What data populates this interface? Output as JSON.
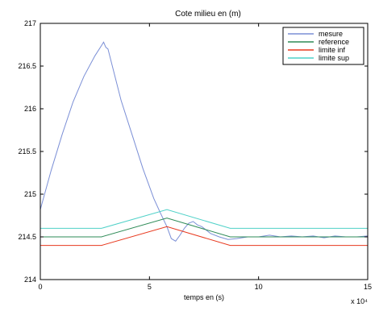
{
  "chart_data": {
    "type": "line",
    "title": "Cote milieu en (m)",
    "xlabel": "temps en (s)",
    "ylabel": "",
    "x_exponent_label": "x 10⁴",
    "xlim": [
      0,
      15
    ],
    "ylim": [
      214,
      217
    ],
    "x_ticks": [
      0,
      5,
      10,
      15
    ],
    "x_tick_labels": [
      "0",
      "5",
      "10",
      "15"
    ],
    "y_ticks": [
      214,
      214.5,
      215,
      215.5,
      216,
      216.5,
      217
    ],
    "y_tick_labels": [
      "214",
      "214.5",
      "215",
      "215.5",
      "216",
      "216.5",
      "217"
    ],
    "grid": false,
    "legend_position": "top-right",
    "series": [
      {
        "name": "mesure",
        "color": "#7b8fd6",
        "x": [
          0,
          0.5,
          1.0,
          1.5,
          2.0,
          2.5,
          2.8,
          2.9,
          3.0,
          3.1,
          3.3,
          3.7,
          4.2,
          4.7,
          5.2,
          5.5,
          5.8,
          6.0,
          6.2,
          6.4,
          6.6,
          6.8,
          7.0,
          7.2,
          7.4,
          7.8,
          8.2,
          8.6,
          9.0,
          9.5,
          10.0,
          10.5,
          11.0,
          11.5,
          12.0,
          12.5,
          13.0,
          13.5,
          14.0,
          14.5,
          15.0
        ],
        "y": [
          214.82,
          215.28,
          215.7,
          216.08,
          216.38,
          216.62,
          216.74,
          216.78,
          216.72,
          216.7,
          216.5,
          216.1,
          215.7,
          215.3,
          214.95,
          214.78,
          214.62,
          214.48,
          214.45,
          214.52,
          214.6,
          214.66,
          214.68,
          214.64,
          214.62,
          214.54,
          214.5,
          214.47,
          214.48,
          214.5,
          214.5,
          214.52,
          214.5,
          214.51,
          214.5,
          214.51,
          214.49,
          214.51,
          214.5,
          214.5,
          214.51
        ]
      },
      {
        "name": "reference",
        "color": "#2e8b57",
        "x": [
          0,
          2.8,
          5.8,
          8.7,
          15
        ],
        "y": [
          214.5,
          214.5,
          214.72,
          214.5,
          214.5
        ]
      },
      {
        "name": "limite inf",
        "color": "#e8391e",
        "x": [
          0,
          2.8,
          5.8,
          8.7,
          15
        ],
        "y": [
          214.4,
          214.4,
          214.62,
          214.4,
          214.4
        ]
      },
      {
        "name": "limite sup",
        "color": "#4fd1c8",
        "x": [
          0,
          2.8,
          5.8,
          8.7,
          15
        ],
        "y": [
          214.6,
          214.6,
          214.82,
          214.6,
          214.6
        ]
      }
    ]
  }
}
